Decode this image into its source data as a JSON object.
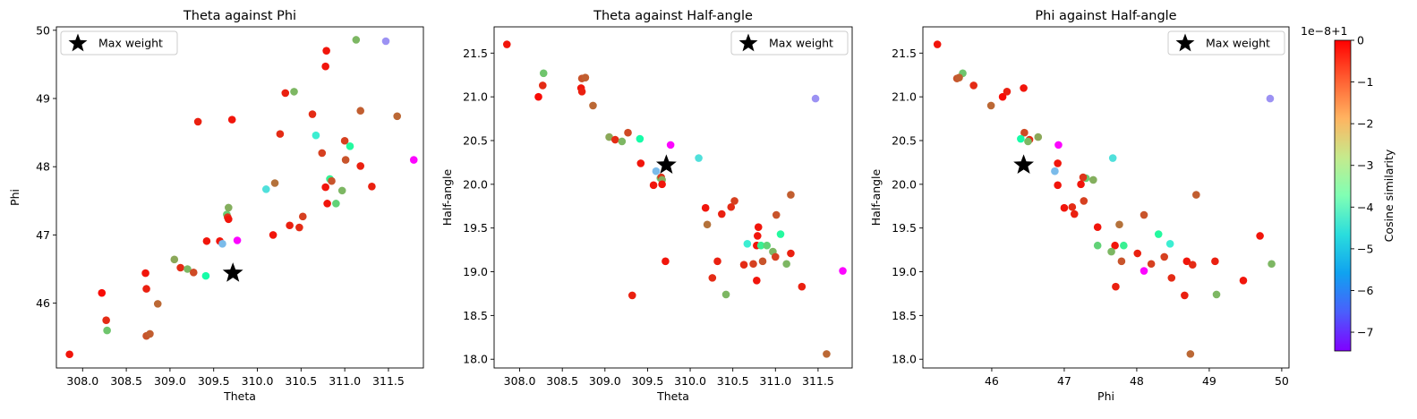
{
  "colorbar": {
    "label": "Cosine similarity",
    "offset_text": "1e−8+1",
    "min": -7.45,
    "max": 0,
    "ticks": [
      0,
      -1,
      -2,
      -3,
      -4,
      -5,
      -6,
      -7
    ],
    "tick_labels": [
      "0",
      "−1",
      "−2",
      "−3",
      "−4",
      "−5",
      "−6",
      "−7"
    ],
    "colormap": "rainbow"
  },
  "legend": {
    "label": "Max weight"
  },
  "max_weight_point": {
    "theta": 309.72,
    "phi": 46.44,
    "half_angle": 20.22
  },
  "chart_data": [
    {
      "type": "scatter",
      "title": "Theta against Phi",
      "xlabel": "Theta",
      "ylabel": "Phi",
      "x_field": "theta",
      "y_field": "phi",
      "xlim": [
        307.7,
        311.9
      ],
      "ylim": [
        45.05,
        50.05
      ],
      "xticks": [
        308.0,
        308.5,
        309.0,
        309.5,
        310.0,
        310.5,
        311.0,
        311.5
      ],
      "xtick_labels": [
        "308.0",
        "308.5",
        "309.0",
        "309.5",
        "310.0",
        "310.5",
        "311.0",
        "311.5"
      ],
      "yticks": [
        46,
        47,
        48,
        49,
        50
      ],
      "ytick_labels": [
        "46",
        "47",
        "48",
        "49",
        "50"
      ],
      "legend_position": "upper-left"
    },
    {
      "type": "scatter",
      "title": "Theta against Half-angle",
      "xlabel": "Theta",
      "ylabel": "Half-angle",
      "x_field": "theta",
      "y_field": "half_angle",
      "xlim": [
        307.7,
        311.9
      ],
      "ylim": [
        17.9,
        21.8
      ],
      "xticks": [
        308.0,
        308.5,
        309.0,
        309.5,
        310.0,
        310.5,
        311.0,
        311.5
      ],
      "xtick_labels": [
        "308.0",
        "308.5",
        "309.0",
        "309.5",
        "310.0",
        "310.5",
        "311.0",
        "311.5"
      ],
      "yticks": [
        18.0,
        18.5,
        19.0,
        19.5,
        20.0,
        20.5,
        21.0,
        21.5
      ],
      "ytick_labels": [
        "18.0",
        "18.5",
        "19.0",
        "19.5",
        "20.0",
        "20.5",
        "21.0",
        "21.5"
      ],
      "legend_position": "upper-right"
    },
    {
      "type": "scatter",
      "title": "Phi against Half-angle",
      "xlabel": "Phi",
      "ylabel": "Half-angle",
      "x_field": "phi",
      "y_field": "half_angle",
      "xlim": [
        45.05,
        50.1
      ],
      "ylim": [
        17.9,
        21.8
      ],
      "xticks": [
        46,
        47,
        48,
        49,
        50
      ],
      "xtick_labels": [
        "46",
        "47",
        "48",
        "49",
        "50"
      ],
      "yticks": [
        18.0,
        18.5,
        19.0,
        19.5,
        20.0,
        20.5,
        21.0,
        21.5
      ],
      "ytick_labels": [
        "18.0",
        "18.5",
        "19.0",
        "19.5",
        "20.0",
        "20.5",
        "21.0",
        "21.5"
      ],
      "legend_position": "upper-right"
    }
  ],
  "points": [
    {
      "theta": 307.85,
      "phi": 45.25,
      "half_angle": 21.6,
      "cosine": -0.2
    },
    {
      "theta": 308.22,
      "phi": 46.15,
      "half_angle": 21.0,
      "cosine": -0.1
    },
    {
      "theta": 308.27,
      "phi": 45.75,
      "half_angle": 21.13,
      "cosine": -0.4
    },
    {
      "theta": 308.28,
      "phi": 45.6,
      "half_angle": 21.27,
      "cosine": -2.1
    },
    {
      "theta": 308.72,
      "phi": 46.44,
      "half_angle": 21.1,
      "cosine": -0.2
    },
    {
      "theta": 308.73,
      "phi": 46.21,
      "half_angle": 21.06,
      "cosine": -0.3
    },
    {
      "theta": 308.73,
      "phi": 45.52,
      "half_angle": 21.21,
      "cosine": -0.8
    },
    {
      "theta": 308.77,
      "phi": 45.55,
      "half_angle": 21.22,
      "cosine": -0.9
    },
    {
      "theta": 308.86,
      "phi": 45.99,
      "half_angle": 20.9,
      "cosine": -1.0
    },
    {
      "theta": 309.05,
      "phi": 46.64,
      "half_angle": 20.54,
      "cosine": -1.7
    },
    {
      "theta": 309.12,
      "phi": 46.52,
      "half_angle": 20.51,
      "cosine": -0.4
    },
    {
      "theta": 309.2,
      "phi": 46.5,
      "half_angle": 20.49,
      "cosine": -1.9
    },
    {
      "theta": 309.27,
      "phi": 46.45,
      "half_angle": 20.59,
      "cosine": -0.7
    },
    {
      "theta": 309.32,
      "phi": 48.66,
      "half_angle": 18.73,
      "cosine": -0.3
    },
    {
      "theta": 309.41,
      "phi": 46.4,
      "half_angle": 20.52,
      "cosine": -3.4
    },
    {
      "theta": 309.42,
      "phi": 46.91,
      "half_angle": 20.24,
      "cosine": -0.2
    },
    {
      "theta": 309.57,
      "phi": 46.91,
      "half_angle": 19.99,
      "cosine": -0.2
    },
    {
      "theta": 309.6,
      "phi": 46.87,
      "half_angle": 20.15,
      "cosine": -5.5
    },
    {
      "theta": 309.65,
      "phi": 47.3,
      "half_angle": 20.07,
      "cosine": -2.2
    },
    {
      "theta": 309.66,
      "phi": 47.26,
      "half_angle": 20.08,
      "cosine": -0.5
    },
    {
      "theta": 309.67,
      "phi": 47.4,
      "half_angle": 20.05,
      "cosine": -1.8
    },
    {
      "theta": 309.67,
      "phi": 47.23,
      "half_angle": 20.0,
      "cosine": -0.2
    },
    {
      "theta": 309.71,
      "phi": 48.69,
      "half_angle": 19.12,
      "cosine": -0.2
    },
    {
      "theta": 309.77,
      "phi": 46.92,
      "half_angle": 20.45,
      "cosine": -7.4
    },
    {
      "theta": 310.1,
      "phi": 47.67,
      "half_angle": 20.3,
      "cosine": -4.9
    },
    {
      "theta": 310.18,
      "phi": 47.0,
      "half_angle": 19.73,
      "cosine": -0.2
    },
    {
      "theta": 310.2,
      "phi": 47.76,
      "half_angle": 19.54,
      "cosine": -1.1
    },
    {
      "theta": 310.26,
      "phi": 48.48,
      "half_angle": 18.93,
      "cosine": -0.4
    },
    {
      "theta": 310.32,
      "phi": 49.08,
      "half_angle": 19.12,
      "cosine": -0.3
    },
    {
      "theta": 310.37,
      "phi": 47.14,
      "half_angle": 19.66,
      "cosine": -0.3
    },
    {
      "theta": 310.42,
      "phi": 49.1,
      "half_angle": 18.74,
      "cosine": -1.9
    },
    {
      "theta": 310.48,
      "phi": 47.11,
      "half_angle": 19.74,
      "cosine": -0.4
    },
    {
      "theta": 310.52,
      "phi": 47.27,
      "half_angle": 19.81,
      "cosine": -0.6
    },
    {
      "theta": 310.63,
      "phi": 48.77,
      "half_angle": 19.08,
      "cosine": -0.4
    },
    {
      "theta": 310.67,
      "phi": 48.46,
      "half_angle": 19.32,
      "cosine": -4.6
    },
    {
      "theta": 310.74,
      "phi": 48.2,
      "half_angle": 19.09,
      "cosine": -0.6
    },
    {
      "theta": 310.78,
      "phi": 47.7,
      "half_angle": 19.3,
      "cosine": -0.2
    },
    {
      "theta": 310.78,
      "phi": 49.47,
      "half_angle": 18.9,
      "cosine": -0.2
    },
    {
      "theta": 310.79,
      "phi": 49.7,
      "half_angle": 19.41,
      "cosine": -0.2
    },
    {
      "theta": 310.8,
      "phi": 47.46,
      "half_angle": 19.51,
      "cosine": -0.2
    },
    {
      "theta": 310.83,
      "phi": 47.82,
      "half_angle": 19.3,
      "cosine": -2.9
    },
    {
      "theta": 310.85,
      "phi": 47.79,
      "half_angle": 19.12,
      "cosine": -0.8
    },
    {
      "theta": 310.9,
      "phi": 47.46,
      "half_angle": 19.3,
      "cosine": -2.3
    },
    {
      "theta": 310.97,
      "phi": 47.65,
      "half_angle": 19.23,
      "cosine": -1.9
    },
    {
      "theta": 311.0,
      "phi": 48.38,
      "half_angle": 19.17,
      "cosine": -0.6
    },
    {
      "theta": 311.01,
      "phi": 48.1,
      "half_angle": 19.65,
      "cosine": -0.8
    },
    {
      "theta": 311.06,
      "phi": 48.3,
      "half_angle": 19.43,
      "cosine": -3.2
    },
    {
      "theta": 311.13,
      "phi": 49.86,
      "half_angle": 19.09,
      "cosine": -1.9
    },
    {
      "theta": 311.18,
      "phi": 48.01,
      "half_angle": 19.21,
      "cosine": -0.3
    },
    {
      "theta": 311.18,
      "phi": 48.82,
      "half_angle": 19.88,
      "cosine": -0.9
    },
    {
      "theta": 311.31,
      "phi": 47.71,
      "half_angle": 18.83,
      "cosine": -0.3
    },
    {
      "theta": 311.47,
      "phi": 49.84,
      "half_angle": 20.98,
      "cosine": -6.0
    },
    {
      "theta": 311.6,
      "phi": 48.74,
      "half_angle": 18.06,
      "cosine": -1.0
    },
    {
      "theta": 311.79,
      "phi": 48.1,
      "half_angle": 19.01,
      "cosine": -7.4
    }
  ]
}
